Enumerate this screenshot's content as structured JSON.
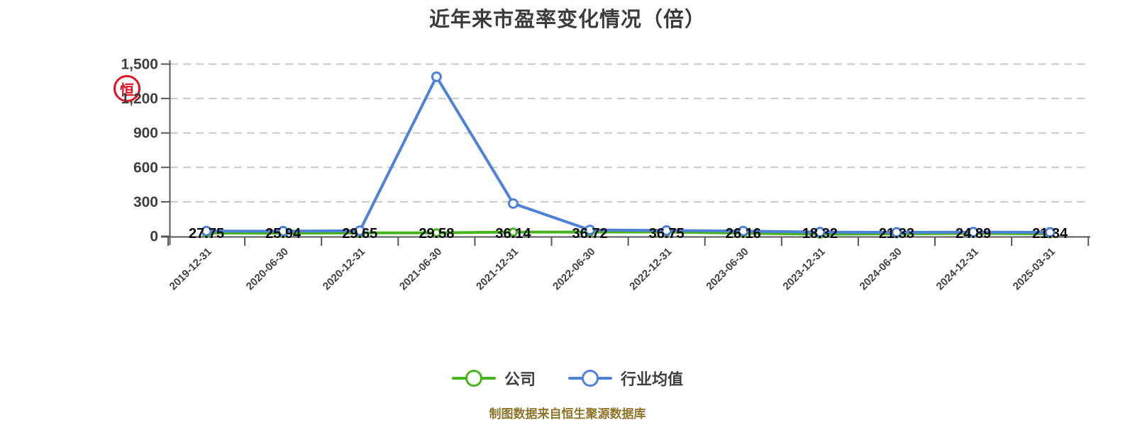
{
  "title": "近年来市盈率变化情况（倍）",
  "footer": "制图数据来自恒生聚源数据库",
  "watermark": {
    "char": "恒",
    "color": "#e60012"
  },
  "colors": {
    "company_green": "#47b41e",
    "industry_blue": "#4d82d8",
    "axis": "#55575a",
    "gridline": "#c9c9c9",
    "title_text": "#3b3b3b",
    "tick_text": "#3f3f3f",
    "value_label_text": "#0a0a0a",
    "footer_text": "#8e752a"
  },
  "legend": [
    {
      "label": "公司",
      "color": "#47b41e"
    },
    {
      "label": "行业均值",
      "color": "#4d82d8"
    }
  ],
  "chart_data": {
    "type": "line",
    "title": "近年来市盈率变化情况（倍）",
    "categories": [
      "2019-12-31",
      "2020-06-30",
      "2020-12-31",
      "2021-06-30",
      "2021-12-31",
      "2022-06-30",
      "2022-12-31",
      "2023-06-30",
      "2023-12-31",
      "2024-06-30",
      "2024-12-31",
      "2025-03-31"
    ],
    "series": [
      {
        "name": "公司",
        "color": "#47b41e",
        "marker": "circle",
        "values": [
          27.75,
          25.94,
          29.65,
          29.58,
          36.14,
          36.72,
          36.75,
          26.16,
          18.32,
          21.33,
          24.89,
          21.34
        ],
        "value_labels_shown": true
      },
      {
        "name": "行业均值",
        "color": "#4d82d8",
        "marker": "circle",
        "values": [
          45,
          44,
          48,
          1390,
          285,
          55,
          50,
          45,
          36,
          34,
          36,
          34
        ],
        "value_labels_shown": false,
        "estimated": true
      }
    ],
    "xlabel": "",
    "ylabel": "",
    "ylim": [
      0,
      1500
    ],
    "ytick_step": 300,
    "ytick_labels": [
      "0",
      "300",
      "600",
      "900",
      "1,200",
      "1,500"
    ],
    "grid": "horizontal-dashed",
    "legend_position": "bottom",
    "x_labels_rotation_deg": -45
  }
}
